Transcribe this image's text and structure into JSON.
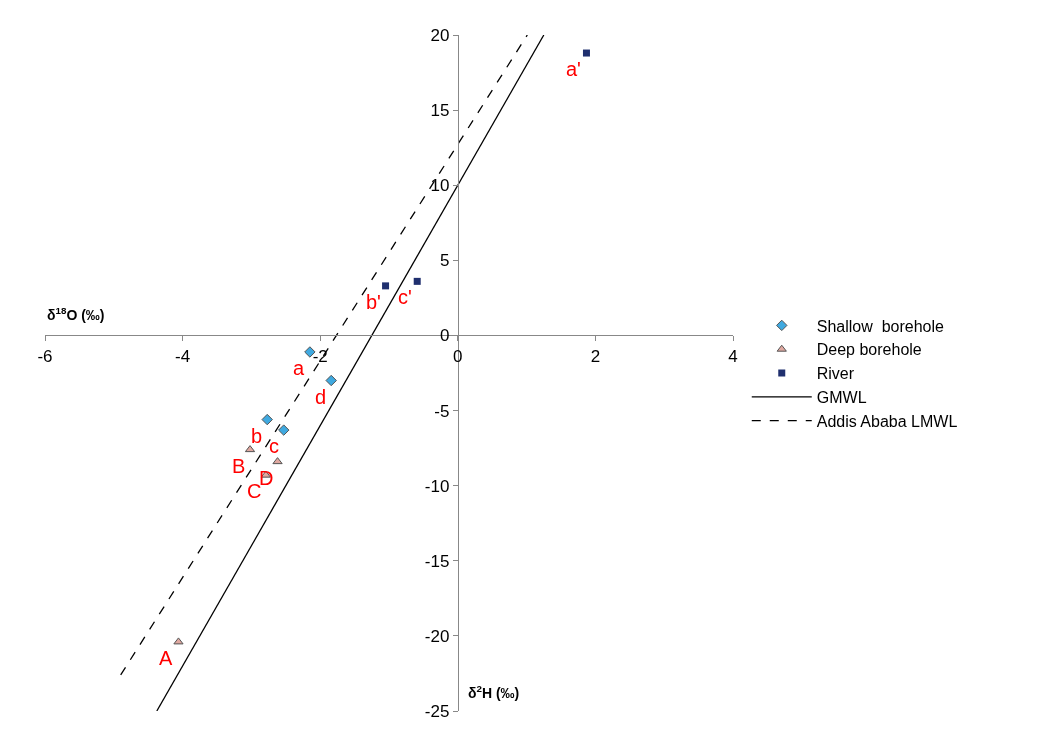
{
  "chart_data": {
    "type": "scatter",
    "xlabel": "δ$^{18}$O (‰)",
    "ylabel": "δ$^{2}$H (‰)",
    "xlim": [
      -6,
      4
    ],
    "xticks": [
      -6,
      -4,
      -2,
      0,
      2,
      4
    ],
    "ylim": [
      -25,
      20
    ],
    "yticks": [
      -25,
      -20,
      -15,
      -10,
      -5,
      0,
      5,
      10,
      15,
      20
    ],
    "legend": "right",
    "series": [
      {
        "name": "Shallow  borehole",
        "marker": "diamond",
        "color": "#3fa9e0",
        "x": [
          -2.15,
          -1.84,
          -2.77,
          -2.53
        ],
        "values": [
          -1.1,
          -3.0,
          -5.6,
          -6.3
        ]
      },
      {
        "name": "Deep borehole",
        "marker": "triangle",
        "color": "#e0a8a0",
        "x": [
          -3.02,
          -2.79,
          -2.62,
          -4.06
        ],
        "values": [
          -7.6,
          -9.3,
          -8.4,
          -20.4
        ]
      },
      {
        "name": "River",
        "marker": "square",
        "color": "#1f2f6e",
        "x": [
          1.87,
          -1.05,
          -0.59
        ],
        "values": [
          18.8,
          3.3,
          3.6
        ]
      },
      {
        "name": "GMWL",
        "type": "line",
        "line_style": "solid",
        "color": "#000000",
        "x": [
          -4.375,
          1.25
        ],
        "values": [
          -25,
          20
        ]
      },
      {
        "name": "Addis Ababa LMWL",
        "type": "line",
        "line_style": "dashed",
        "color": "#000000",
        "x": [
          -4.9,
          1.01
        ],
        "values": [
          -22.6,
          20
        ]
      }
    ],
    "annotations": [
      {
        "text": "a",
        "x": -2.15,
        "y": -1.1
      },
      {
        "text": "d",
        "x": -1.84,
        "y": -3.0
      },
      {
        "text": "b",
        "x": -2.77,
        "y": -5.6
      },
      {
        "text": "c",
        "x": -2.53,
        "y": -6.3
      },
      {
        "text": "B",
        "x": -3.02,
        "y": -7.6
      },
      {
        "text": "C",
        "x": -2.79,
        "y": -9.3
      },
      {
        "text": "D",
        "x": -2.62,
        "y": -8.4
      },
      {
        "text": "A",
        "x": -4.06,
        "y": -20.4
      },
      {
        "text": "a'",
        "x": 1.87,
        "y": 18.8
      },
      {
        "text": "b'",
        "x": -1.05,
        "y": 3.3
      },
      {
        "text": "c'",
        "x": -0.59,
        "y": 3.6
      }
    ]
  }
}
